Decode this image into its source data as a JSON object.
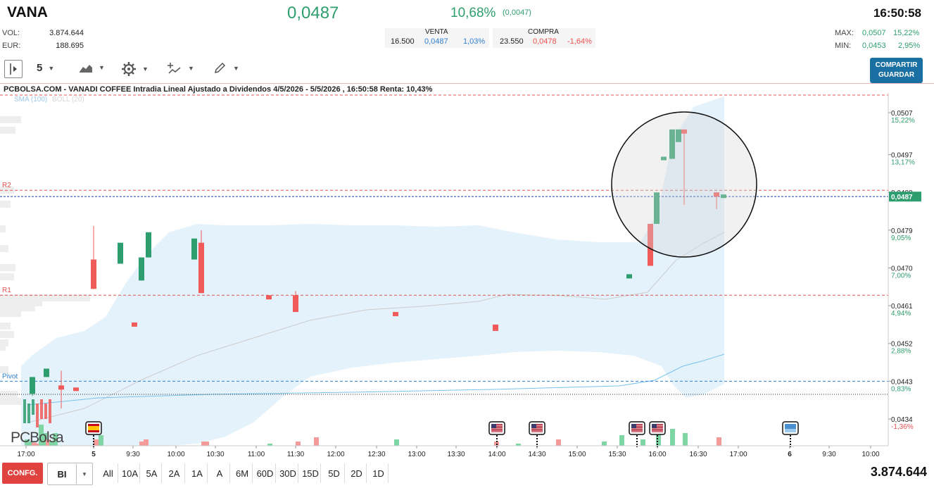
{
  "header": {
    "ticker": "VANA",
    "price": "0,0487",
    "change_pct": "10,68%",
    "change_abs": "(0,0047)",
    "clock": "16:50:58",
    "vol_label": "VOL:",
    "vol_value": "3.874.644",
    "eur_label": "EUR:",
    "eur_value": "188.695",
    "venta_label": "VENTA",
    "compra_label": "COMPRA",
    "venta_qty": "16.500",
    "venta_price": "0,0487",
    "venta_pct": "1,03%",
    "compra_qty": "23.550",
    "compra_price": "0,0478",
    "compra_pct": "-1,64%",
    "max_label": "MAX:",
    "max_value": "0,0507",
    "max_pct": "15,22%",
    "min_label": "MIN:",
    "min_value": "0,0453",
    "min_pct": "2,95%"
  },
  "toolbar": {
    "interval_value": "5",
    "share_line1": "COMPARTIR",
    "share_line2": "GUARDAR"
  },
  "chart_title": "PCBOLSA.COM - VANADI COFFEE Intradia Lineal Ajustado a Dividendos 4/5/2026 - 5/5/2026 , 16:50:58 Renta: 10,43%",
  "legend": {
    "sma": "SMA (100)",
    "boll": "BOLL (20)"
  },
  "watermark": "PCBolsa",
  "bottom": {
    "config_label": "CONFG.",
    "bi_label": "BI",
    "ranges": [
      "All",
      "10A",
      "5A",
      "2A",
      "1A",
      "A",
      "6M",
      "60D",
      "30D",
      "15D",
      "5D",
      "2D",
      "1D"
    ],
    "volume_total": "3.874.644"
  },
  "colors": {
    "up": "#2e9e6e",
    "down": "#f05a58",
    "band": "#d9eefa",
    "resistance": "#e05050",
    "pivot": "#2f7fd1",
    "last": "#1a3fa8"
  },
  "chart_data": {
    "type": "candlestick",
    "title": "PCBOLSA.COM - VANADI COFFEE Intradia Lineal Ajustado a Dividendos 4/5/2026 - 5/5/2026 , 16:50:58 Renta: 10,43%",
    "y_ticks": [
      {
        "value": 0.0507,
        "label": "0,0507",
        "pct": "15,22%"
      },
      {
        "value": 0.0497,
        "label": "0,0497",
        "pct": "13,17%"
      },
      {
        "value": 0.0488,
        "label": "0,0488",
        "pct": ""
      },
      {
        "value": 0.0479,
        "label": "0,0479",
        "pct": "9,05%"
      },
      {
        "value": 0.047,
        "label": "0,0470",
        "pct": "7,00%"
      },
      {
        "value": 0.0461,
        "label": "0,0461",
        "pct": "4,94%"
      },
      {
        "value": 0.0452,
        "label": "0,0452",
        "pct": "2,88%"
      },
      {
        "value": 0.0443,
        "label": "0,0443",
        "pct": "0,83%"
      },
      {
        "value": 0.0434,
        "label": "0,0434",
        "pct": "-1,36%"
      }
    ],
    "ylim": [
      0.043,
      0.0512
    ],
    "last_price": {
      "value": 0.0487,
      "label": "0,0487"
    },
    "levels": [
      {
        "name": "R2",
        "value": 0.04885
      },
      {
        "name": "R1",
        "value": 0.04635
      },
      {
        "name": "Pivot",
        "value": 0.0443
      }
    ],
    "x_ticks": [
      "17:00",
      "5",
      "9:30",
      "10:00",
      "10:30",
      "11:00",
      "11:30",
      "12:00",
      "12:30",
      "13:00",
      "13:30",
      "14:00",
      "14:30",
      "15:00",
      "15:30",
      "16:00",
      "16:30",
      "17:00",
      "6",
      "9:30",
      "10:00"
    ],
    "event_flags": [
      {
        "x_tick": "5",
        "icon": "spain-flag-icon"
      },
      {
        "x_tick": "14:00",
        "icon": "usa-flag-icon"
      },
      {
        "x_tick": "14:30",
        "icon": "usa-flag-icon"
      },
      {
        "x_tick": "15:30",
        "icon": "usa-flag-icon"
      },
      {
        "x_tick": "16:00",
        "icon": "usa-flag-icon"
      },
      {
        "x_tick": "6",
        "icon": "calendar-flag-icon"
      }
    ],
    "candles": [
      {
        "time": "16:45 (4/5)",
        "open": 0.044,
        "close": 0.0444,
        "high": 0.0444,
        "low": 0.04395
      },
      {
        "time": "16:50 (4/5)",
        "open": 0.0444,
        "close": 0.0446,
        "high": 0.0446,
        "low": 0.0444
      },
      {
        "time": "17:00 (4/5)",
        "open": 0.0442,
        "close": 0.0441,
        "high": 0.04455,
        "low": 0.04365
      },
      {
        "time": "17:30 (4/5)",
        "open": 0.04415,
        "close": 0.0441,
        "high": 0.04415,
        "low": 0.0441
      },
      {
        "time": "9:00",
        "open": 0.0472,
        "close": 0.0465,
        "high": 0.048,
        "low": 0.0465
      },
      {
        "time": "9:15",
        "open": 0.0471,
        "close": 0.0476,
        "high": 0.0476,
        "low": 0.0471
      },
      {
        "time": "9:30",
        "open": 0.0457,
        "close": 0.0456,
        "high": 0.0457,
        "low": 0.0456
      },
      {
        "time": "9:40",
        "open": 0.0467,
        "close": 0.04725,
        "high": 0.04725,
        "low": 0.0467
      },
      {
        "time": "9:45",
        "open": 0.04725,
        "close": 0.04785,
        "high": 0.04785,
        "low": 0.04725
      },
      {
        "time": "10:20",
        "open": 0.0472,
        "close": 0.0477,
        "high": 0.0477,
        "low": 0.0472
      },
      {
        "time": "10:25",
        "open": 0.0476,
        "close": 0.0464,
        "high": 0.0479,
        "low": 0.0464
      },
      {
        "time": "11:05",
        "open": 0.04635,
        "close": 0.04625,
        "high": 0.04635,
        "low": 0.04625
      },
      {
        "time": "11:35",
        "open": 0.04635,
        "close": 0.04595,
        "high": 0.04645,
        "low": 0.04595
      },
      {
        "time": "12:40",
        "open": 0.04595,
        "close": 0.04585,
        "high": 0.04595,
        "low": 0.04585
      },
      {
        "time": "14:00",
        "open": 0.04565,
        "close": 0.0455,
        "high": 0.04565,
        "low": 0.0455
      },
      {
        "time": "15:45",
        "open": 0.04675,
        "close": 0.04685,
        "high": 0.04685,
        "low": 0.04675
      },
      {
        "time": "15:55",
        "open": 0.04805,
        "close": 0.04705,
        "high": 0.04805,
        "low": 0.04705
      },
      {
        "time": "16:00",
        "open": 0.04805,
        "close": 0.0488,
        "high": 0.0488,
        "low": 0.04805
      },
      {
        "time": "16:05",
        "open": 0.0496,
        "close": 0.04965,
        "high": 0.04965,
        "low": 0.0496
      },
      {
        "time": "16:10",
        "open": 0.0496,
        "close": 0.0503,
        "high": 0.0503,
        "low": 0.0496
      },
      {
        "time": "16:15",
        "open": 0.05,
        "close": 0.0503,
        "high": 0.0503,
        "low": 0.05
      },
      {
        "time": "16:20",
        "open": 0.0503,
        "close": 0.0502,
        "high": 0.0503,
        "low": 0.0485
      },
      {
        "time": "16:45",
        "open": 0.0488,
        "close": 0.0487,
        "high": 0.0488,
        "low": 0.0484
      },
      {
        "time": "16:50",
        "open": 0.0487,
        "close": 0.04875,
        "high": 0.04875,
        "low": 0.0487
      }
    ],
    "volume": [
      0.3,
      0.2,
      0.15,
      0.1,
      1.0,
      0.6,
      0.3,
      0.2,
      0.6,
      0.3,
      0.5,
      0.2,
      0.3,
      0.2,
      0.2,
      0.1,
      0.2,
      0.4,
      0.3,
      0.2,
      0.1,
      0.3,
      0.2,
      0.5,
      0.3,
      1.0,
      0.8,
      0.6,
      0.4
    ],
    "grid": false
  }
}
